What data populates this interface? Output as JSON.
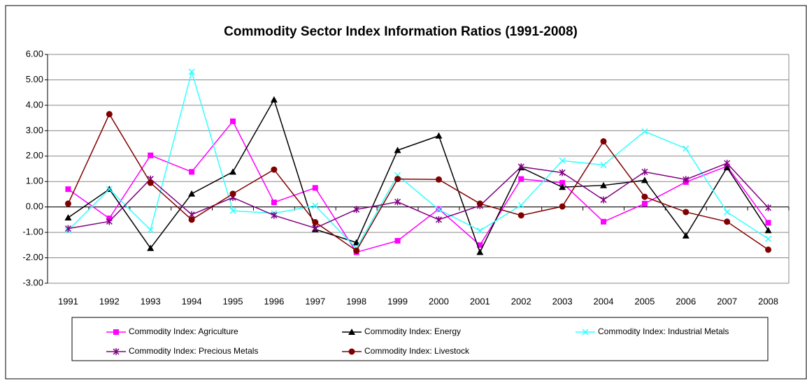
{
  "chart_data": {
    "type": "line",
    "title": "Commodity Sector Index Information Ratios (1991-2008)",
    "categories": [
      "1991",
      "1992",
      "1993",
      "1994",
      "1995",
      "1996",
      "1997",
      "1998",
      "1999",
      "2000",
      "2001",
      "2002",
      "2003",
      "2004",
      "2005",
      "2006",
      "2007",
      "2008"
    ],
    "series": [
      {
        "name": "Commodity Index: Agriculture",
        "color": "#ff00ff",
        "marker": "square",
        "values": [
          0.7,
          -0.45,
          2.03,
          1.38,
          3.37,
          0.18,
          0.75,
          -1.78,
          -1.33,
          -0.08,
          -1.5,
          1.1,
          0.95,
          -0.58,
          0.13,
          0.98,
          1.6,
          -0.62
        ]
      },
      {
        "name": "Commodity Index: Energy",
        "color": "#000000",
        "marker": "triangle",
        "values": [
          -0.42,
          0.7,
          -1.62,
          0.52,
          1.38,
          4.22,
          -0.88,
          -1.4,
          2.23,
          2.8,
          -1.78,
          1.55,
          0.78,
          0.85,
          1.05,
          -1.13,
          1.55,
          -0.92
        ]
      },
      {
        "name": "Commodity Index: Industrial Metals",
        "color": "#33ffff",
        "marker": "x",
        "values": [
          -0.92,
          0.7,
          -0.9,
          5.32,
          -0.15,
          -0.25,
          0.05,
          -1.63,
          1.25,
          -0.1,
          -0.93,
          0.07,
          1.82,
          1.65,
          2.97,
          2.3,
          -0.2,
          -1.25
        ]
      },
      {
        "name": "Commodity Index: Precious Metals",
        "color": "#800080",
        "marker": "star",
        "values": [
          -0.85,
          -0.57,
          1.1,
          -0.3,
          0.37,
          -0.33,
          -0.83,
          -0.1,
          0.2,
          -0.5,
          0.05,
          1.58,
          1.35,
          0.28,
          1.38,
          1.08,
          1.72,
          -0.03
        ]
      },
      {
        "name": "Commodity Index: Livestock",
        "color": "#800000",
        "marker": "circle",
        "values": [
          0.13,
          3.65,
          0.95,
          -0.5,
          0.52,
          1.47,
          -0.6,
          -1.72,
          1.1,
          1.08,
          0.13,
          -0.33,
          0.02,
          2.58,
          0.4,
          -0.2,
          -0.58,
          -1.68
        ]
      }
    ],
    "ylim": [
      -3,
      6
    ],
    "yticks": [
      {
        "value": -3,
        "label": "-3.00"
      },
      {
        "value": -2,
        "label": "-2.00"
      },
      {
        "value": -1,
        "label": "-1.00"
      },
      {
        "value": 0,
        "label": "0.00"
      },
      {
        "value": 1,
        "label": "1.00"
      },
      {
        "value": 2,
        "label": "2.00"
      },
      {
        "value": 3,
        "label": "3.00"
      },
      {
        "value": 4,
        "label": "4.00"
      },
      {
        "value": 5,
        "label": "5.00"
      },
      {
        "value": 6,
        "label": "6.00"
      }
    ],
    "grid": true,
    "legend": "bottom"
  }
}
